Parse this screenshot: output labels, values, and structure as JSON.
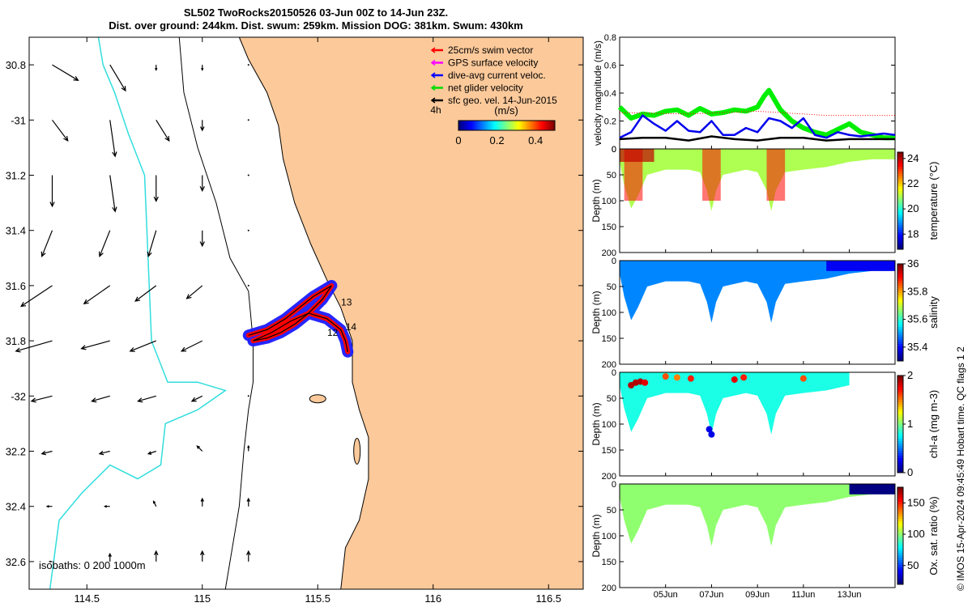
{
  "header": {
    "title_line1": "SL502 TwoRocks20150526 03-Jun 00Z to 14-Jun 23Z.",
    "title_line2": "Dist. over ground: 244km. Dist. swum: 259km. Mission DOG: 381km. Swum: 430km"
  },
  "footer_text": "© IMOS 15-Apr-2024 09:45:49 Hobart time. QC flags 1  2",
  "colors": {
    "land": "#fcc99a",
    "isobath_200": "#000000",
    "isobath_1000": "#33dddd",
    "track_red": "#ff0000",
    "track_blue": "#1a1aff"
  },
  "chart_data": [
    {
      "type": "scatter",
      "name": "map",
      "xlim": [
        114.25,
        116.65
      ],
      "ylim": [
        -32.7,
        -30.7
      ],
      "xticks": [
        114.5,
        115,
        115.5,
        116,
        116.5
      ],
      "xtick_labels": [
        "114.5",
        "115",
        "115.5",
        "116",
        "116.5"
      ],
      "yticks": [
        -30.8,
        -31,
        -31.2,
        -31.4,
        -31.6,
        -31.8,
        -32,
        -32.2,
        -32.4,
        -32.6
      ],
      "ytick_labels": [
        "30.8",
        "-31",
        "31.2",
        "31.4",
        "31.6",
        "31.8",
        "-32",
        "32.2",
        "32.4",
        "32.6"
      ],
      "legend": {
        "placement": "top-right",
        "items": [
          {
            "label": "25cm/s swim vector",
            "color": "#ff0000"
          },
          {
            "label": "GPS surface velocity",
            "color": "#ff00ff"
          },
          {
            "label": "dive-avg current veloc.",
            "color": "#0000ff"
          },
          {
            "label": "net glider velocity",
            "color": "#00dd00"
          },
          {
            "label": "sfc geo. vel. 14-Jun-2015",
            "color": "#000000"
          }
        ]
      },
      "colorbar": {
        "label": "(m/s)",
        "ticks": [
          "0",
          "0.2",
          "0.4"
        ],
        "range": [
          0,
          0.5
        ],
        "side_label": "4h"
      },
      "isobath_label": "isobaths: 0   200  1000m",
      "day_labels": [
        {
          "text": "13",
          "lon": 115.58,
          "lat": -31.66
        },
        {
          "text": "14",
          "lon": 115.6,
          "lat": -31.75
        },
        {
          "text": "12",
          "lon": 115.52,
          "lat": -31.77
        }
      ],
      "track": [
        [
          115.2,
          -31.78
        ],
        [
          115.28,
          -31.76
        ],
        [
          115.36,
          -31.72
        ],
        [
          115.42,
          -31.68
        ],
        [
          115.48,
          -31.64
        ],
        [
          115.54,
          -31.61
        ],
        [
          115.56,
          -31.6
        ],
        [
          115.52,
          -31.65
        ],
        [
          115.46,
          -31.7
        ],
        [
          115.4,
          -31.74
        ],
        [
          115.34,
          -31.77
        ],
        [
          115.28,
          -31.79
        ],
        [
          115.22,
          -31.8
        ],
        [
          115.3,
          -31.77
        ],
        [
          115.38,
          -31.73
        ],
        [
          115.46,
          -31.7
        ],
        [
          115.54,
          -31.72
        ],
        [
          115.6,
          -31.76
        ],
        [
          115.62,
          -31.8
        ],
        [
          115.63,
          -31.84
        ]
      ],
      "vectors_u_v_ms": {
        "lons": [
          114.35,
          114.6,
          114.8,
          115.0,
          115.2
        ],
        "lats": [
          -30.8,
          -31.0,
          -31.2,
          -31.4,
          -31.6,
          -31.8,
          -32.0,
          -32.2,
          -32.4,
          -32.6
        ],
        "u": [
          [
            0.1,
            0.06,
            0.0,
            0.0,
            0.0
          ],
          [
            0.06,
            0.02,
            0.05,
            0.0,
            0.0
          ],
          [
            0.0,
            0.02,
            0.0,
            0.0,
            0.0
          ],
          [
            -0.04,
            -0.04,
            -0.03,
            0.0,
            0.0
          ],
          [
            -0.12,
            -0.1,
            -0.08,
            -0.06,
            0.0
          ],
          [
            -0.14,
            -0.11,
            -0.1,
            -0.08,
            0.0
          ],
          [
            -0.08,
            -0.07,
            -0.07,
            -0.04,
            0.0
          ],
          [
            -0.04,
            -0.04,
            -0.03,
            -0.02,
            0.0
          ],
          [
            -0.02,
            -0.02,
            -0.01,
            0.0,
            0.0
          ],
          [
            -0.01,
            0.0,
            0.0,
            0.0,
            0.0
          ]
        ],
        "v": [
          [
            -0.06,
            -0.1,
            -0.02,
            -0.02,
            0.0
          ],
          [
            -0.08,
            -0.14,
            -0.08,
            -0.04,
            0.0
          ],
          [
            -0.12,
            -0.14,
            -0.1,
            -0.06,
            0.0
          ],
          [
            -0.1,
            -0.1,
            -0.1,
            -0.06,
            0.0
          ],
          [
            -0.08,
            -0.07,
            -0.06,
            -0.05,
            0.0
          ],
          [
            -0.04,
            -0.03,
            -0.04,
            -0.04,
            0.0
          ],
          [
            -0.02,
            -0.02,
            -0.02,
            -0.02,
            0.0
          ],
          [
            -0.01,
            -0.01,
            -0.01,
            0.02,
            0.02
          ],
          [
            0.0,
            0.0,
            0.02,
            0.03,
            0.03
          ],
          [
            0.0,
            0.03,
            0.04,
            0.04,
            0.04
          ]
        ]
      }
    },
    {
      "type": "line",
      "name": "velocity",
      "ylabel": "velocity magnitude (m/s)",
      "ylim": [
        0,
        0.8
      ],
      "yticks": [
        0,
        0.2,
        0.4,
        0.6,
        0.8
      ],
      "xlim": [
        3.0,
        14.99
      ],
      "series": [
        {
          "color": "#00ee00",
          "x": [
            3.0,
            3.5,
            4.0,
            4.5,
            5.0,
            5.5,
            6.0,
            6.5,
            7.0,
            7.5,
            8.0,
            8.5,
            9.0,
            9.3,
            9.5,
            10.0,
            10.5,
            11.0,
            11.5,
            12.0,
            12.5,
            13.0,
            13.5,
            14.0,
            14.5,
            14.99
          ],
          "y": [
            0.3,
            0.22,
            0.25,
            0.24,
            0.27,
            0.28,
            0.24,
            0.29,
            0.25,
            0.26,
            0.28,
            0.27,
            0.3,
            0.38,
            0.42,
            0.28,
            0.2,
            0.15,
            0.12,
            0.1,
            0.14,
            0.18,
            0.12,
            0.1,
            0.08,
            0.08
          ]
        },
        {
          "color": "#0000ee",
          "x": [
            3.0,
            3.5,
            4.0,
            4.5,
            5.0,
            5.5,
            6.0,
            6.5,
            7.0,
            7.5,
            8.0,
            8.5,
            9.0,
            9.5,
            10.0,
            10.5,
            11.0,
            11.5,
            12.0,
            12.5,
            13.0,
            13.5,
            14.0,
            14.5,
            14.99
          ],
          "y": [
            0.08,
            0.12,
            0.24,
            0.18,
            0.13,
            0.2,
            0.13,
            0.12,
            0.2,
            0.1,
            0.1,
            0.15,
            0.12,
            0.22,
            0.2,
            0.15,
            0.22,
            0.1,
            0.08,
            0.12,
            0.1,
            0.09,
            0.1,
            0.11,
            0.1
          ]
        },
        {
          "color": "#000000",
          "x": [
            3.0,
            4.0,
            5.0,
            6.0,
            7.0,
            8.0,
            9.0,
            10.0,
            11.0,
            12.0,
            13.0,
            14.0,
            14.99
          ],
          "y": [
            0.07,
            0.08,
            0.08,
            0.06,
            0.09,
            0.07,
            0.06,
            0.08,
            0.08,
            0.06,
            0.07,
            0.07,
            0.07
          ]
        },
        {
          "color": "#ff0000",
          "x": [
            3.0,
            6.0,
            9.0,
            12.0,
            14.99
          ],
          "y": [
            0.26,
            0.25,
            0.27,
            0.24,
            0.24
          ]
        }
      ]
    },
    {
      "type": "heatmap",
      "name": "temperature",
      "ylabel": "Depth (m)",
      "clabel": "temperature (°C)",
      "ctick_labels": [
        "24",
        "22",
        "20",
        "18"
      ],
      "cticks": [
        24,
        22,
        20,
        18
      ],
      "clim": [
        16.8,
        24.5
      ],
      "ylim": [
        0,
        200
      ],
      "yticks": [
        0,
        50,
        100,
        150,
        200
      ],
      "profile": {
        "x": [
          3.0,
          3.2,
          3.5,
          3.8,
          4.2,
          5.0,
          6.0,
          6.5,
          6.8,
          7.0,
          7.2,
          7.5,
          8.0,
          8.5,
          9.0,
          9.4,
          9.6,
          9.8,
          10.2,
          11.0,
          12.0,
          13.0,
          14.0,
          14.99
        ],
        "depth": [
          25,
          70,
          115,
          90,
          50,
          40,
          40,
          45,
          80,
          120,
          80,
          50,
          45,
          40,
          45,
          80,
          120,
          80,
          45,
          40,
          35,
          25,
          20,
          20
        ]
      },
      "values": {
        "surface": 21.5,
        "deep": 23.5,
        "background": 21.0
      }
    },
    {
      "type": "heatmap",
      "name": "salinity",
      "ylabel": "Depth (m)",
      "clabel": "salinity",
      "ctick_labels": [
        "36",
        "35.8",
        "35.6",
        "35.4"
      ],
      "cticks": [
        36,
        35.8,
        35.6,
        35.4
      ],
      "clim": [
        35.3,
        36.0
      ],
      "ylim": [
        0,
        200
      ],
      "yticks": [
        0,
        50,
        100,
        150,
        200
      ],
      "profile": {
        "x": [
          3.0,
          3.2,
          3.5,
          3.8,
          4.2,
          5.0,
          6.0,
          6.5,
          6.8,
          7.0,
          7.2,
          7.5,
          8.0,
          8.5,
          9.0,
          9.4,
          9.6,
          9.8,
          10.2,
          11.0,
          12.0,
          13.0,
          14.0,
          14.99
        ],
        "depth": [
          25,
          70,
          115,
          90,
          50,
          40,
          40,
          45,
          80,
          120,
          80,
          50,
          45,
          40,
          45,
          80,
          120,
          80,
          45,
          40,
          35,
          25,
          20,
          20
        ]
      },
      "values": {
        "surface": 35.5,
        "deep": 35.6,
        "background": 35.48
      }
    },
    {
      "type": "heatmap",
      "name": "chl-a",
      "ylabel": "Depth (m)",
      "clabel": "chl-a (mg m-3)",
      "ctick_labels": [
        "2",
        "1",
        "0"
      ],
      "cticks": [
        2,
        1,
        0
      ],
      "clim": [
        0,
        2
      ],
      "ylim": [
        0,
        200
      ],
      "yticks": [
        0,
        50,
        100,
        150,
        200
      ],
      "profile": {
        "x": [
          3.0,
          3.2,
          3.5,
          3.8,
          4.2,
          5.0,
          6.0,
          6.5,
          6.8,
          7.0,
          7.2,
          7.5,
          8.0,
          8.5,
          9.0,
          9.4,
          9.6,
          9.8,
          10.2,
          11.0,
          12.0,
          13.0
        ],
        "depth": [
          25,
          70,
          115,
          90,
          50,
          40,
          40,
          45,
          80,
          120,
          80,
          50,
          45,
          40,
          45,
          80,
          120,
          80,
          45,
          40,
          35,
          25
        ]
      },
      "values": {
        "surface": 1.0,
        "deep": 0.4,
        "background": 0.8
      }
    },
    {
      "type": "heatmap",
      "name": "oxygen",
      "ylabel": "Depth (m)",
      "clabel": "Ox. sat. ratio (%)",
      "ctick_labels": [
        "150",
        "100",
        "50"
      ],
      "cticks": [
        150,
        100,
        50
      ],
      "clim": [
        20,
        175
      ],
      "ylim": [
        0,
        200
      ],
      "yticks": [
        0,
        50,
        100,
        150,
        200
      ],
      "profile": {
        "x": [
          3.0,
          3.2,
          3.5,
          3.8,
          4.2,
          5.0,
          6.0,
          6.5,
          6.8,
          7.0,
          7.2,
          7.5,
          8.0,
          8.5,
          9.0,
          9.4,
          9.6,
          9.8,
          10.2,
          11.0,
          12.0,
          13.0,
          14.0,
          14.99
        ],
        "depth": [
          25,
          70,
          115,
          90,
          50,
          40,
          40,
          45,
          80,
          120,
          80,
          50,
          45,
          40,
          45,
          80,
          120,
          80,
          45,
          40,
          35,
          25,
          20,
          20
        ]
      },
      "values": {
        "surface": 100,
        "deep": 100,
        "background": 100,
        "tail_from": 13.0,
        "tail_value": 20
      }
    }
  ],
  "time_axis": {
    "ticks": [
      5,
      7,
      9,
      11,
      13
    ],
    "labels": [
      "05Jun",
      "07Jun",
      "09Jun",
      "11Jun",
      "13Jun"
    ]
  }
}
